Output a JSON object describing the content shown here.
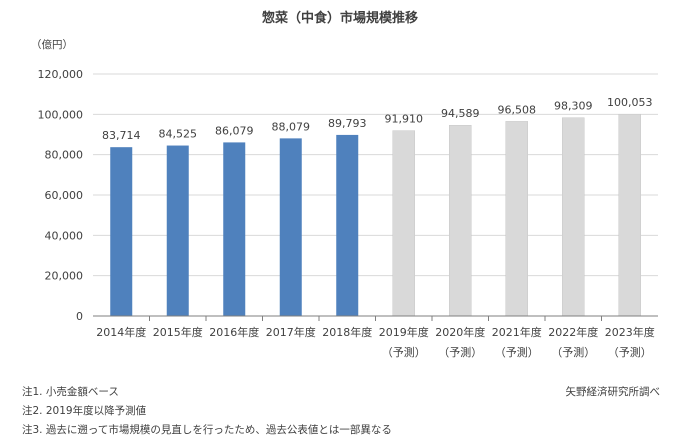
{
  "chart_data": {
    "type": "bar",
    "title": "惣菜（中食）市場規模推移",
    "ylabel": "（億円）",
    "xlabel": "",
    "categories": [
      "2014年度",
      "2015年度",
      "2016年度",
      "2017年度",
      "2018年度",
      "2019年度",
      "2020年度",
      "2021年度",
      "2022年度",
      "2023年度"
    ],
    "category_sublabels": [
      "",
      "",
      "",
      "",
      "",
      "（予測）",
      "（予測）",
      "（予測）",
      "（予測）",
      "（予測）"
    ],
    "values": [
      83714,
      84525,
      86079,
      88079,
      89793,
      91910,
      94589,
      96508,
      98309,
      100053
    ],
    "value_labels": [
      "83,714",
      "84,525",
      "86,079",
      "88,079",
      "89,793",
      "91,910",
      "94,589",
      "96,508",
      "98,309",
      "100,053"
    ],
    "forecast": [
      false,
      false,
      false,
      false,
      false,
      true,
      true,
      true,
      true,
      true
    ],
    "ylim": [
      0,
      120000
    ],
    "yticks": [
      0,
      20000,
      40000,
      60000,
      80000,
      100000,
      120000
    ],
    "ytick_labels": [
      "0",
      "20,000",
      "40,000",
      "60,000",
      "80,000",
      "100,000",
      "120,000"
    ],
    "grid": true,
    "colors": {
      "actual": "#4f81bd",
      "forecast": "#d9d9d9",
      "grid": "#d9d9d9",
      "axis": "#7f7f7f"
    }
  },
  "notes": [
    "注1. 小売金額ベース",
    "注2. 2019年度以降予測値",
    "注3. 過去に遡って市場規模の見直しを行ったため、過去公表値とは一部異なる"
  ],
  "source": "矢野経済研究所調べ"
}
